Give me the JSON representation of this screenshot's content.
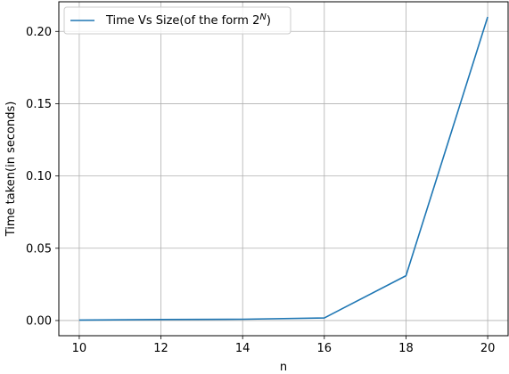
{
  "chart_data": {
    "type": "line",
    "x": [
      10,
      12,
      14,
      16,
      18,
      20
    ],
    "series": [
      {
        "name": "Time Vs Size(of the form 2^N)",
        "values": [
          0.0003,
          0.0007,
          0.0009,
          0.0018,
          0.031,
          0.21
        ],
        "color": "#1f77b4"
      }
    ],
    "xlabel": "n",
    "ylabel": "Time taken(in seconds)",
    "xlim": [
      9.5,
      20.5
    ],
    "ylim": [
      -0.0105,
      0.2205
    ],
    "xticks": [
      10,
      12,
      14,
      16,
      18,
      20
    ],
    "xtick_labels": [
      "10",
      "12",
      "14",
      "16",
      "18",
      "20"
    ],
    "yticks": [
      0.0,
      0.05,
      0.1,
      0.15,
      0.2
    ],
    "ytick_labels": [
      "0.00",
      "0.05",
      "0.10",
      "0.15",
      "0.20"
    ],
    "grid": true,
    "legend": {
      "placement": "upper-left",
      "text_main": "Time Vs Size(of the form 2",
      "text_sup": "N",
      "text_end": ")"
    }
  }
}
